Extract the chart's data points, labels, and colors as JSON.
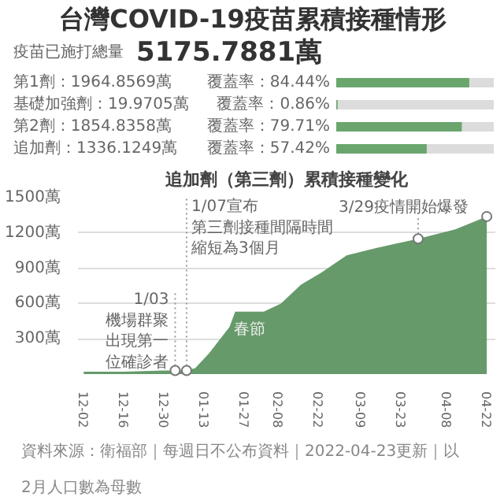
{
  "chart_data": [
    {
      "type": "bar",
      "orientation": "horizontal",
      "title": "台灣COVID-19疫苗累積接種情形",
      "annotations": [
        "疫苗已施打總量",
        "5175.7881萬"
      ],
      "categories": [
        "第1劑：1964.8569萬",
        "基礎加強劑：19.9705萬",
        "第2劑：1854.8358萬",
        "追加劑：1336.1249萬"
      ],
      "values": [
        84.44,
        0.86,
        79.71,
        57.42
      ],
      "value_labels": [
        "覆蓋率：84.44%",
        "覆蓋率：0.86%",
        "覆蓋率：79.71%",
        "覆蓋率：57.42%"
      ],
      "xlim": [
        0,
        100
      ],
      "color": "#6aa56e"
    },
    {
      "type": "area",
      "title": "追加劑（第三劑）累積接種變化",
      "x": [
        "2021-12-02",
        "2021-12-16",
        "2021-12-30",
        "2022-01-03",
        "2022-01-07",
        "2022-01-10",
        "2022-01-15",
        "2022-01-22",
        "2022-01-24",
        "2022-02-03",
        "2022-02-09",
        "2022-02-16",
        "2022-02-23",
        "2022-03-04",
        "2022-03-14",
        "2022-03-29",
        "2022-04-11",
        "2022-04-22"
      ],
      "series": [
        {
          "type": "area",
          "color": "#5f9563",
          "values": [
            20,
            20,
            30,
            30,
            30,
            50,
            180,
            400,
            530,
            530,
            600,
            760,
            860,
            1010,
            1070,
            1150,
            1230,
            1340
          ]
        },
        {
          "type": "scatter",
          "marker": "circle",
          "color": "#ffffff",
          "x": [
            "2022-01-03",
            "2022-01-07",
            "2022-03-29",
            "2022-04-22"
          ],
          "values": [
            30,
            30,
            1150,
            1340
          ]
        }
      ],
      "xlim": [
        "2021-11-30",
        "2022-04-25"
      ],
      "xticks": [
        {
          "value": "2021-12-02",
          "label": "12-02"
        },
        {
          "value": "2021-12-16",
          "label": "12-16"
        },
        {
          "value": "2021-12-30",
          "label": "12-30"
        },
        {
          "value": "2022-01-13",
          "label": "01-13"
        },
        {
          "value": "2022-01-27",
          "label": "01-27"
        },
        {
          "value": "2022-02-08",
          "label": "02-08"
        },
        {
          "value": "2022-02-22",
          "label": "02-22"
        },
        {
          "value": "2022-03-09",
          "label": "03-09"
        },
        {
          "value": "2022-03-23",
          "label": "03-23"
        },
        {
          "value": "2022-04-08",
          "label": "04-08"
        },
        {
          "value": "2022-04-22",
          "label": "04-22"
        }
      ],
      "ylim": [
        0,
        1500
      ],
      "yticks": [
        {
          "value": 300,
          "label": "300萬"
        },
        {
          "value": 600,
          "label": "600萬"
        },
        {
          "value": 900,
          "label": "900萬"
        },
        {
          "value": 1200,
          "label": "1200萬"
        },
        {
          "value": 1500,
          "label": "1500萬"
        }
      ],
      "grid": "y",
      "annotations": [
        {
          "text": "1/03機場群聚出現第一位確診者",
          "x": "2022-01-03",
          "y": 30
        },
        {
          "text": "1/07宣布第三劑接種間隔時間縮短為3個月",
          "x": "2022-01-07",
          "y": 30
        },
        {
          "text": "3/29疫情開始爆發",
          "x": "2022-03-29",
          "y": 1150
        },
        {
          "text": "春節",
          "x": "2022-01-29",
          "y": 530
        },
        "資料來源：衛福部｜每週日不公布資料｜2022-04-23更新｜以2月人口數為母數"
      ]
    }
  ]
}
